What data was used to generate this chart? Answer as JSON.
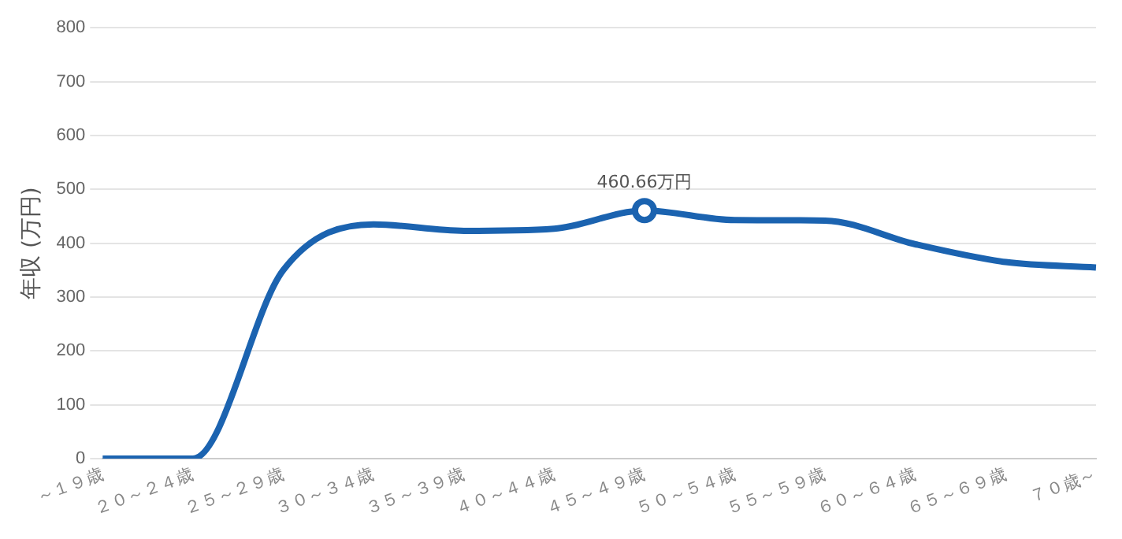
{
  "chart_data": {
    "type": "line",
    "ylabel": "年収 (万円)",
    "categories": [
      "～１９歳",
      "２０～２４歳",
      "２５～２９歳",
      "３０～３４歳",
      "３５～３９歳",
      "４０～４４歳",
      "４５～４９歳",
      "５０～５４歳",
      "５５～５９歳",
      "６０～６４歳",
      "６５～６９歳",
      "７０歳～"
    ],
    "series": [
      {
        "color": "#1b63b0",
        "values": [
          0,
          0,
          350,
          435,
          423,
          427,
          460.66,
          443,
          442,
          398,
          365,
          355
        ]
      }
    ],
    "ylim": [
      0,
      800
    ],
    "yticks": [
      0,
      100,
      200,
      300,
      400,
      500,
      600,
      700,
      800
    ],
    "grid": "y",
    "annotations": [
      {
        "text": "460.66万円",
        "x": "４５～４９歳",
        "y": 460.66
      }
    ]
  }
}
